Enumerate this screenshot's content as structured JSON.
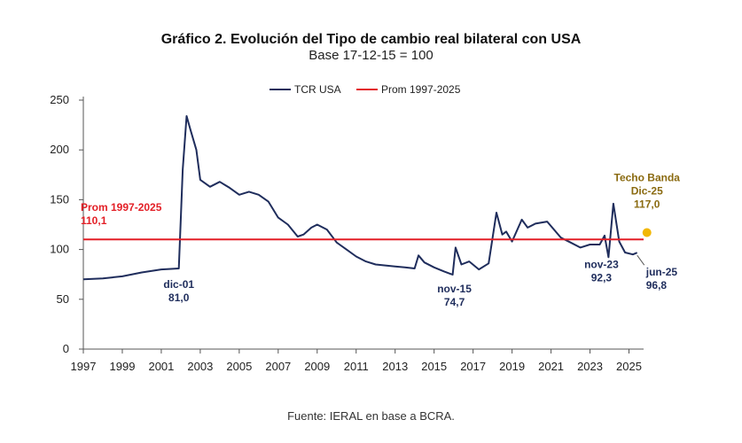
{
  "header": {
    "title": "Gráfico 2. Evolución del Tipo de cambio real bilateral con USA",
    "subtitle": "Base 17-12-15 = 100"
  },
  "footer": {
    "source": "Fuente: IERAL en base a BCRA."
  },
  "colors": {
    "tcr": "#1f2d5c",
    "prom": "#e31f26",
    "techo": "#f2b705",
    "axis": "#555555"
  },
  "chart_data": {
    "type": "line",
    "ylim": [
      0,
      250
    ],
    "yticks": [
      0,
      50,
      100,
      150,
      200,
      250
    ],
    "xlim": [
      1997,
      2025.75
    ],
    "xticks": [
      "1997",
      "1999",
      "2001",
      "2003",
      "2005",
      "2007",
      "2009",
      "2011",
      "2013",
      "2015",
      "2017",
      "2019",
      "2021",
      "2023",
      "2025"
    ],
    "legend": {
      "position": "top",
      "entries": [
        "TCR USA",
        "Prom 1997-2025"
      ]
    },
    "series": [
      {
        "name": "TCR USA",
        "x": [
          1997,
          1998,
          1999,
          2000,
          2001,
          2001.9,
          2002.0,
          2002.1,
          2002.3,
          2002.5,
          2002.8,
          2003,
          2003.5,
          2004,
          2004.5,
          2005,
          2005.5,
          2006,
          2006.5,
          2007,
          2007.5,
          2008,
          2008.3,
          2008.7,
          2009,
          2009.5,
          2010,
          2010.5,
          2011,
          2011.5,
          2012,
          2012.5,
          2013,
          2013.5,
          2014,
          2014.2,
          2014.5,
          2015,
          2015.5,
          2015.95,
          2016.1,
          2016.4,
          2016.8,
          2017.3,
          2017.8,
          2018.2,
          2018.5,
          2018.7,
          2019,
          2019.5,
          2019.8,
          2020.2,
          2020.8,
          2021.5,
          2022,
          2022.5,
          2023,
          2023.5,
          2023.75,
          2023.95,
          2024.2,
          2024.5,
          2024.8,
          2025.2,
          2025.42
        ],
        "values": [
          70,
          71,
          73,
          77,
          80,
          81,
          130,
          180,
          234,
          220,
          200,
          170,
          163,
          168,
          162,
          155,
          158,
          155,
          148,
          132,
          125,
          113,
          115,
          122,
          125,
          120,
          107,
          100,
          93,
          88,
          85,
          84,
          83,
          82,
          81,
          94,
          87,
          82,
          78,
          74.7,
          102,
          85,
          88,
          80,
          86,
          137,
          115,
          118,
          108,
          130,
          122,
          126,
          128,
          112,
          107,
          102,
          105,
          105,
          114,
          92.3,
          146,
          108,
          97,
          95,
          96.8
        ]
      },
      {
        "name": "Prom 1997-2025",
        "x": [
          1997,
          2025.75
        ],
        "values": [
          110.1,
          110.1
        ]
      }
    ],
    "annotations": [
      {
        "lines": [
          "dic-01",
          "81,0"
        ],
        "x": 2001.9,
        "y": 81.0,
        "color": "blue"
      },
      {
        "lines": [
          "nov-15",
          "74,7"
        ],
        "x": 2015.95,
        "y": 74.7,
        "color": "blue"
      },
      {
        "lines": [
          "nov-23",
          "92,3"
        ],
        "x": 2023.95,
        "y": 92.3,
        "color": "blue"
      },
      {
        "lines": [
          "jun-25",
          "96,8"
        ],
        "x": 2025.42,
        "y": 96.8,
        "color": "blue"
      },
      {
        "lines": [
          "Prom 1997-2025",
          "110,1"
        ],
        "x": 1997.0,
        "y": 110.1,
        "color": "red"
      },
      {
        "lines": [
          "Techo Banda",
          "Dic-25",
          "117,0"
        ],
        "x": 2025.92,
        "y": 117.0,
        "color": "gold"
      }
    ]
  }
}
